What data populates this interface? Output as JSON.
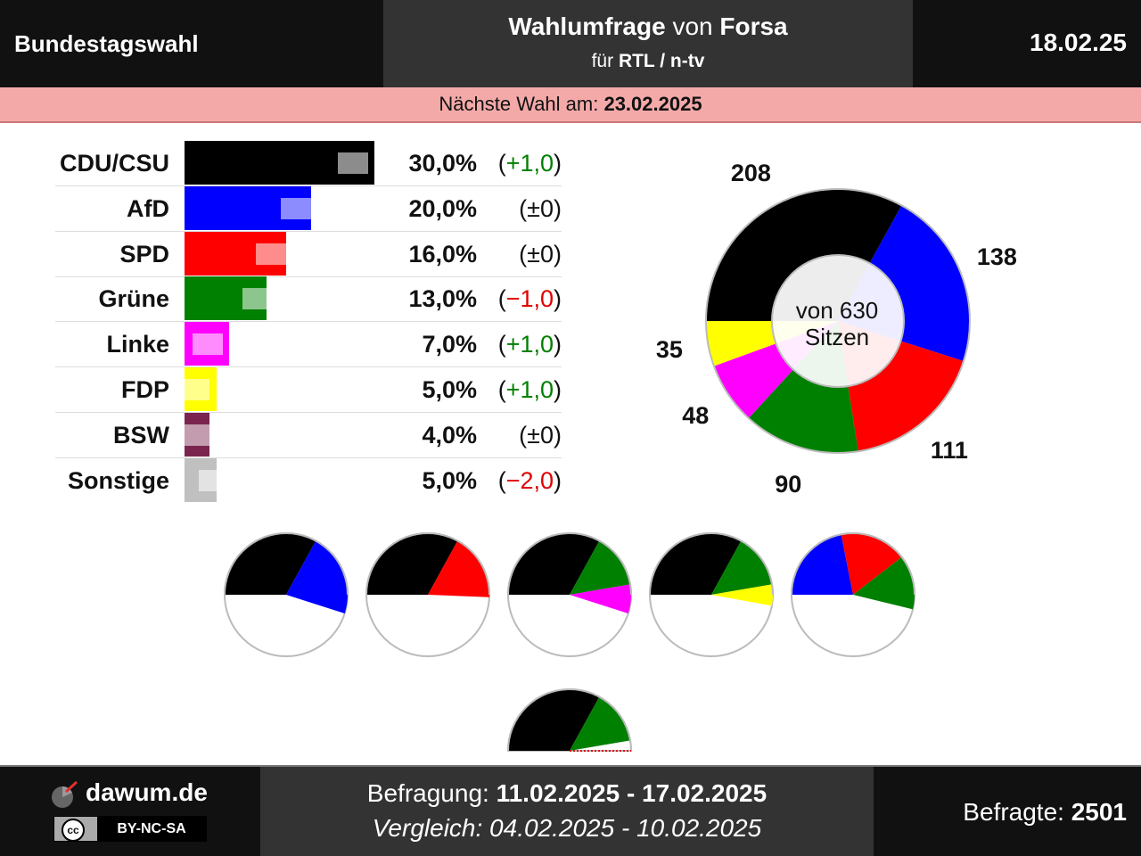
{
  "header": {
    "title": "Bundestagswahl",
    "center_bold1": "Wahlumfrage",
    "center_mid": " von ",
    "center_bold2": "Forsa",
    "center_sub_prefix": "für ",
    "center_sub_bold": "RTL / n-tv",
    "date": "18.02.25"
  },
  "next_election": {
    "label": "Nächste Wahl am: ",
    "date": "23.02.2025"
  },
  "parties": [
    {
      "name": "CDU/CSU",
      "pct": "30,0%",
      "change": "+1,0",
      "change_dir": "up",
      "color": "#000000",
      "value": 30.0,
      "prev": 29.0
    },
    {
      "name": "AfD",
      "pct": "20,0%",
      "change": "±0",
      "change_dir": "none",
      "color": "#0000ff",
      "value": 20.0,
      "prev": 20.0
    },
    {
      "name": "SPD",
      "pct": "16,0%",
      "change": "±0",
      "change_dir": "none",
      "color": "#ff0000",
      "value": 16.0,
      "prev": 16.0
    },
    {
      "name": "Grüne",
      "pct": "13,0%",
      "change": "−1,0",
      "change_dir": "down",
      "color": "#008000",
      "value": 13.0,
      "prev": 14.0
    },
    {
      "name": "Linke",
      "pct": "7,0%",
      "change": "+1,0",
      "change_dir": "up",
      "color": "#ff00ff",
      "value": 7.0,
      "prev": 6.0
    },
    {
      "name": "FDP",
      "pct": "5,0%",
      "change": "+1,0",
      "change_dir": "up",
      "color": "#ffff00",
      "value": 5.0,
      "prev": 4.0
    },
    {
      "name": "BSW",
      "pct": "4,0%",
      "change": "±0",
      "change_dir": "none",
      "color": "#7b2450",
      "value": 4.0,
      "prev": 4.0
    },
    {
      "name": "Sonstige",
      "pct": "5,0%",
      "change": "−2,0",
      "change_dir": "down",
      "color": "#c0c0c0",
      "value": 5.0,
      "prev": 7.0
    }
  ],
  "seats": {
    "center_line1": "von 630",
    "center_line2": "Sitzen",
    "total": 630,
    "items": [
      {
        "party": "CDU/CSU",
        "seats": 208,
        "label": "208",
        "color": "#000000"
      },
      {
        "party": "AfD",
        "seats": 138,
        "label": "138",
        "color": "#0000ff"
      },
      {
        "party": "SPD",
        "seats": 111,
        "label": "111",
        "color": "#ff0000"
      },
      {
        "party": "Grüne",
        "seats": 90,
        "label": "90",
        "color": "#008000"
      },
      {
        "party": "Linke",
        "seats": 48,
        "label": "48",
        "color": "#ff00ff"
      },
      {
        "party": "FDP",
        "seats": 35,
        "label": "35",
        "color": "#ffff00"
      }
    ]
  },
  "coalitions": [
    {
      "parties": [
        "CDU/CSU",
        "AfD"
      ]
    },
    {
      "parties": [
        "CDU/CSU",
        "SPD"
      ]
    },
    {
      "parties": [
        "CDU/CSU",
        "Grüne",
        "Linke"
      ]
    },
    {
      "parties": [
        "CDU/CSU",
        "Grüne",
        "FDP"
      ]
    },
    {
      "parties": [
        "AfD",
        "SPD",
        "Grüne"
      ]
    },
    {
      "parties": [
        "CDU/CSU",
        "Grüne"
      ]
    }
  ],
  "chart_data": {
    "type": "bar",
    "categories": [
      "CDU/CSU",
      "AfD",
      "SPD",
      "Grüne",
      "Linke",
      "FDP",
      "BSW",
      "Sonstige"
    ],
    "values": [
      30.0,
      20.0,
      16.0,
      13.0,
      7.0,
      5.0,
      4.0,
      5.0
    ],
    "previous": [
      29.0,
      20.0,
      16.0,
      14.0,
      6.0,
      4.0,
      4.0,
      7.0
    ],
    "seats": {
      "CDU/CSU": 208,
      "AfD": 138,
      "SPD": 111,
      "Grüne": 90,
      "Linke": 48,
      "FDP": 35
    },
    "unit": "%"
  },
  "footer": {
    "site": "dawum.de",
    "license": "BY-NC-SA",
    "survey_label": "Befragung: ",
    "survey_dates": "11.02.2025 - 17.02.2025",
    "compare_label": "Vergleich: ",
    "compare_dates": "04.02.2025 - 10.02.2025",
    "respondents_label": "Befragte: ",
    "respondents": "2501"
  }
}
